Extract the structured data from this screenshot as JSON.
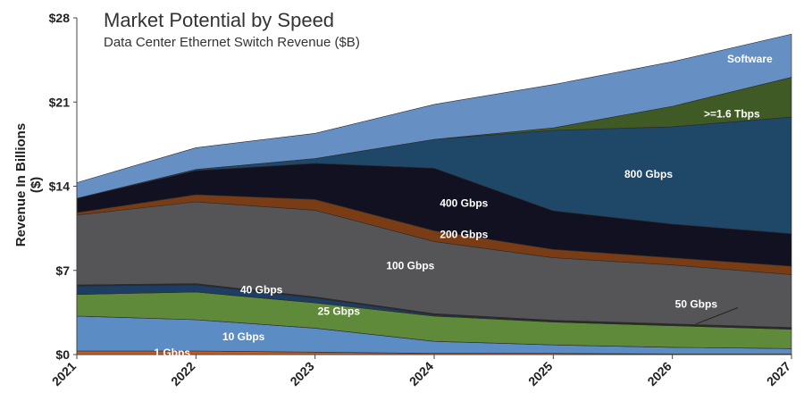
{
  "chart_data": {
    "type": "area",
    "stacked": true,
    "title": "Market Potential by Speed",
    "subtitle": "Data Center Ethernet Switch Revenue ($B)",
    "xlabel": "",
    "ylabel": "Revenue In Billions ($)",
    "x": [
      "2021",
      "2022",
      "2023",
      "2024",
      "2025",
      "2026",
      "2027"
    ],
    "ylim": [
      0,
      28
    ],
    "yticks": [
      "$0",
      "$7",
      "$14",
      "$21",
      "$28"
    ],
    "grid": false,
    "series": [
      {
        "name": "1 Gbps",
        "color": "#c8581e",
        "values": [
          0.3,
          0.3,
          0.2,
          0.1,
          0.1,
          0.05,
          0.05
        ]
      },
      {
        "name": "10 Gbps",
        "color": "#5b8cc4",
        "values": [
          2.9,
          2.6,
          2.0,
          1.0,
          0.7,
          0.55,
          0.45
        ]
      },
      {
        "name": "25 Gbps",
        "color": "#5f8a3a",
        "values": [
          1.8,
          2.3,
          2.1,
          2.1,
          1.9,
          1.8,
          1.6
        ]
      },
      {
        "name": "40 Gbps",
        "color": "#1d3d63",
        "values": [
          0.7,
          0.6,
          0.4,
          0.1,
          0.05,
          0.05,
          0.05
        ]
      },
      {
        "name": "50 Gbps",
        "color": "#2a2a2a",
        "values": [
          0.1,
          0.1,
          0.1,
          0.1,
          0.1,
          0.1,
          0.1
        ]
      },
      {
        "name": "100 Gbps",
        "color": "#555557",
        "values": [
          5.8,
          6.8,
          7.2,
          6.0,
          5.2,
          4.9,
          4.4
        ]
      },
      {
        "name": "200 Gbps",
        "color": "#7a3c14",
        "values": [
          0.2,
          0.6,
          0.9,
          0.9,
          0.7,
          0.6,
          0.7
        ]
      },
      {
        "name": "400 Gbps",
        "color": "#111122",
        "values": [
          1.2,
          2.0,
          3.0,
          5.2,
          3.2,
          2.8,
          2.7
        ]
      },
      {
        "name": "800 Gbps",
        "color": "#1e4768",
        "values": [
          0.0,
          0.1,
          0.4,
          2.4,
          6.7,
          8.1,
          9.7
        ]
      },
      {
        "name": ">=1.6 Tbps",
        "color": "#3f5a24",
        "values": [
          0.0,
          0.0,
          0.0,
          0.0,
          0.2,
          1.7,
          3.3
        ]
      },
      {
        "name": "Software",
        "color": "#6690c4",
        "values": [
          1.3,
          1.8,
          2.1,
          2.9,
          3.6,
          3.7,
          3.6
        ]
      }
    ],
    "labels": [
      {
        "text": "1 Gbps",
        "x": 2021.8,
        "y": 0.15,
        "color": "#ffffff"
      },
      {
        "text": "10 Gbps",
        "x": 2022.4,
        "y": 1.5,
        "color": "#ffffff"
      },
      {
        "text": "25 Gbps",
        "x": 2023.2,
        "y": 3.6,
        "color": "#ffffff"
      },
      {
        "text": "40 Gbps",
        "x": 2022.55,
        "y": 5.4,
        "color": "#ffffff"
      },
      {
        "text": "100 Gbps",
        "x": 2023.8,
        "y": 7.4,
        "color": "#ffffff"
      },
      {
        "text": "200 Gbps",
        "x": 2024.25,
        "y": 10.0,
        "color": "#ffffff"
      },
      {
        "text": "400 Gbps",
        "x": 2024.25,
        "y": 12.6,
        "color": "#ffffff"
      },
      {
        "text": "800 Gbps",
        "x": 2025.8,
        "y": 15.0,
        "color": "#ffffff"
      },
      {
        "text": ">=1.6 Tbps",
        "x": 2026.5,
        "y": 20.0,
        "color": "#ffffff"
      },
      {
        "text": "Software",
        "x": 2026.65,
        "y": 24.6,
        "color": "#ffffff"
      },
      {
        "text": "50 Gbps",
        "x": 2026.2,
        "y": 4.2,
        "color": "#ffffff"
      }
    ]
  }
}
